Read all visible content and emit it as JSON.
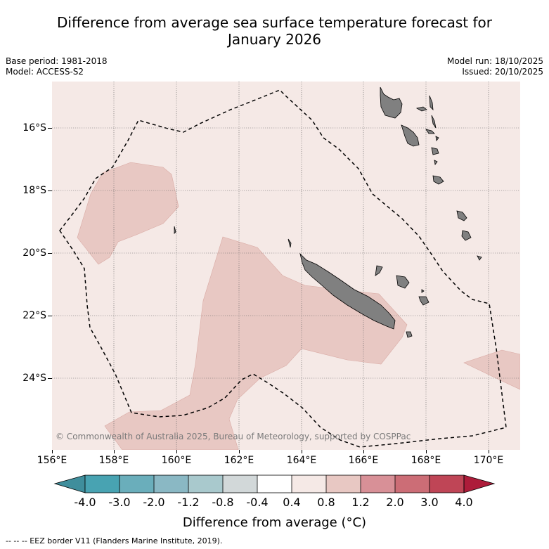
{
  "header": {
    "title_line1": "Difference from average sea surface temperature forecast for",
    "title_line2": "January 2026",
    "base_period": "Base period: 1981-2018",
    "model": "Model: ACCESS-S2",
    "model_run": "Model run: 18/10/2025",
    "issued": "Issued: 20/10/2025"
  },
  "map": {
    "copyright": "© Commonwealth of Australia 2025, Bureau of Meteorology, supported by COSPPac",
    "y_axis_labels": [
      "16°S",
      "18°S",
      "20°S",
      "22°S",
      "24°S"
    ],
    "x_axis_labels": [
      "156°E",
      "158°E",
      "160°E",
      "162°E",
      "164°E",
      "166°E",
      "168°E",
      "170°E"
    ],
    "colors": {
      "background_anomaly": "#f5e9e6",
      "warm_anomaly": "#e8c8c3",
      "land": "#808080",
      "grid": "#666666"
    }
  },
  "colorbar": {
    "labels": [
      "-4.0",
      "-3.0",
      "-2.0",
      "-1.2",
      "-0.8",
      "-0.4",
      "0.4",
      "0.8",
      "1.2",
      "2.0",
      "3.0",
      "4.0"
    ],
    "colors": [
      "#3f8e9c",
      "#48a3b2",
      "#6aaebb",
      "#8ab8c4",
      "#a9c9cd",
      "#d2d8d9",
      "#ffffff",
      "#f5e9e6",
      "#e8c8c3",
      "#d89097",
      "#cc6d76",
      "#bf4556",
      "#ad1c3a"
    ],
    "title": "Difference from average (°C)"
  },
  "legend_note": "--  --  -- EEZ border V11 (Flanders Marine Institute, 2019)."
}
